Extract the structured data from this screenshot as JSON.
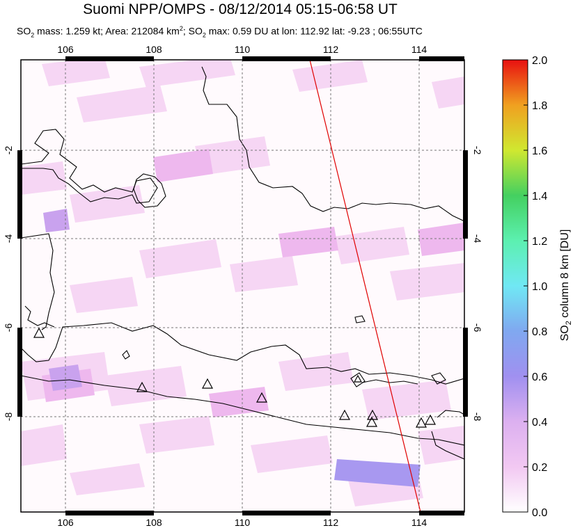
{
  "title": "Suomi NPP/OMPS - 08/12/2014 05:15-06:58 UT",
  "subtitle": {
    "mass_prefix": "SO",
    "mass_sub": "2",
    "mass_text": " mass: 1.259 kt; Area: 212084 km",
    "area_sup": "2",
    "max_prefix": "; SO",
    "max_sub": "2",
    "max_text": " max: 0.59 DU at lon: 112.92 lat: -9.23 ; 06:55UTC"
  },
  "map": {
    "lon_ticks": [
      "106",
      "108",
      "110",
      "112",
      "114"
    ],
    "lat_ticks_left": [
      "-2",
      "-4",
      "-6",
      "-8"
    ],
    "lat_ticks_right": [
      "-2",
      "-4",
      "-6",
      "-8"
    ],
    "lon_values": [
      106,
      108,
      110,
      112,
      114
    ],
    "lat_values": [
      -2,
      -4,
      -6,
      -8
    ],
    "lon_range": [
      105,
      115
    ],
    "lat_range": [
      -10.2,
      0.2
    ],
    "volcano_count": 10,
    "orbit_line_color": "#e00000"
  },
  "colorbar": {
    "ticks": [
      "2.0",
      "1.8",
      "1.6",
      "1.4",
      "1.2",
      "1.0",
      "0.8",
      "0.6",
      "0.4",
      "0.2",
      "0.0"
    ],
    "label_prefix": "SO",
    "label_sub": "2",
    "label_suffix": " column 8 km [DU]",
    "colors": [
      "#ffffff",
      "#f2c8f2",
      "#c8a0f0",
      "#8c8cf0",
      "#70d8f0",
      "#5cf0b0",
      "#4ad070",
      "#c8e030",
      "#f0b020",
      "#f06020",
      "#e81010"
    ]
  }
}
